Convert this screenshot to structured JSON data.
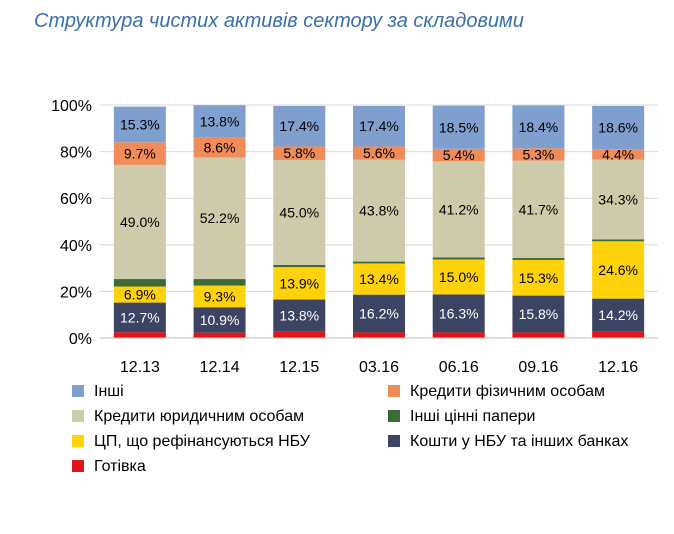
{
  "title": "Структура чистих активів сектору за складовими",
  "chart_data": {
    "type": "bar",
    "stacked": true,
    "categories": [
      "12.13",
      "12.14",
      "12.15",
      "03.16",
      "06.16",
      "09.16",
      "12.16"
    ],
    "ylim": [
      0,
      100
    ],
    "y_ticks": [
      "0%",
      "20%",
      "40%",
      "60%",
      "80%",
      "100%"
    ],
    "series": [
      {
        "key": "cash",
        "name": "Готівка",
        "color": "#e0141b",
        "values": [
          2.5,
          2.3,
          2.7,
          2.4,
          2.4,
          2.4,
          2.7
        ],
        "labels": [
          "",
          "",
          "",
          "",
          "",
          "",
          ""
        ]
      },
      {
        "key": "nbu",
        "name": "Кошти у НБУ та інших банках",
        "color": "#3c4464",
        "values": [
          12.7,
          10.9,
          13.8,
          16.2,
          16.3,
          15.8,
          14.2
        ],
        "labels": [
          "12.7%",
          "10.9%",
          "13.8%",
          "16.2%",
          "16.3%",
          "15.8%",
          "14.2%"
        ]
      },
      {
        "key": "cp",
        "name": "ЦП, що рефінансуються НБУ",
        "color": "#ffd20a",
        "values": [
          6.9,
          9.3,
          13.9,
          13.4,
          15.0,
          15.3,
          24.6
        ],
        "labels": [
          "6.9%",
          "9.3%",
          "13.9%",
          "13.4%",
          "15.0%",
          "15.3%",
          "24.6%"
        ]
      },
      {
        "key": "other_sec",
        "name": "Інші цінні папери",
        "color": "#3e6a3a",
        "values": [
          3.2,
          2.8,
          1.0,
          0.8,
          0.9,
          0.9,
          0.8
        ],
        "labels": [
          "",
          "",
          "",
          "",
          "",
          "",
          ""
        ]
      },
      {
        "key": "corp",
        "name": "Кредити юридичним особам",
        "color": "#cdcbaa",
        "values": [
          49.0,
          52.2,
          45.0,
          43.8,
          41.2,
          41.7,
          34.3
        ],
        "labels": [
          "49.0%",
          "52.2%",
          "45.0%",
          "43.8%",
          "41.2%",
          "41.7%",
          "34.3%"
        ]
      },
      {
        "key": "ind",
        "name": "Кредити фізичним особам",
        "color": "#f08c5a",
        "values": [
          9.7,
          8.6,
          5.8,
          5.6,
          5.4,
          5.3,
          4.4
        ],
        "labels": [
          "9.7%",
          "8.6%",
          "5.8%",
          "5.6%",
          "5.4%",
          "5.3%",
          "4.4%"
        ]
      },
      {
        "key": "other",
        "name": "Інші",
        "color": "#7f9fcf",
        "values": [
          15.3,
          13.8,
          17.4,
          17.4,
          18.5,
          18.4,
          18.6
        ],
        "labels": [
          "15.3%",
          "13.8%",
          "17.4%",
          "17.4%",
          "18.5%",
          "18.4%",
          "18.6%"
        ]
      }
    ],
    "legend_order": [
      "other",
      "ind",
      "corp",
      "other_sec",
      "cp",
      "nbu",
      "cash"
    ],
    "legend_position": "bottom"
  }
}
